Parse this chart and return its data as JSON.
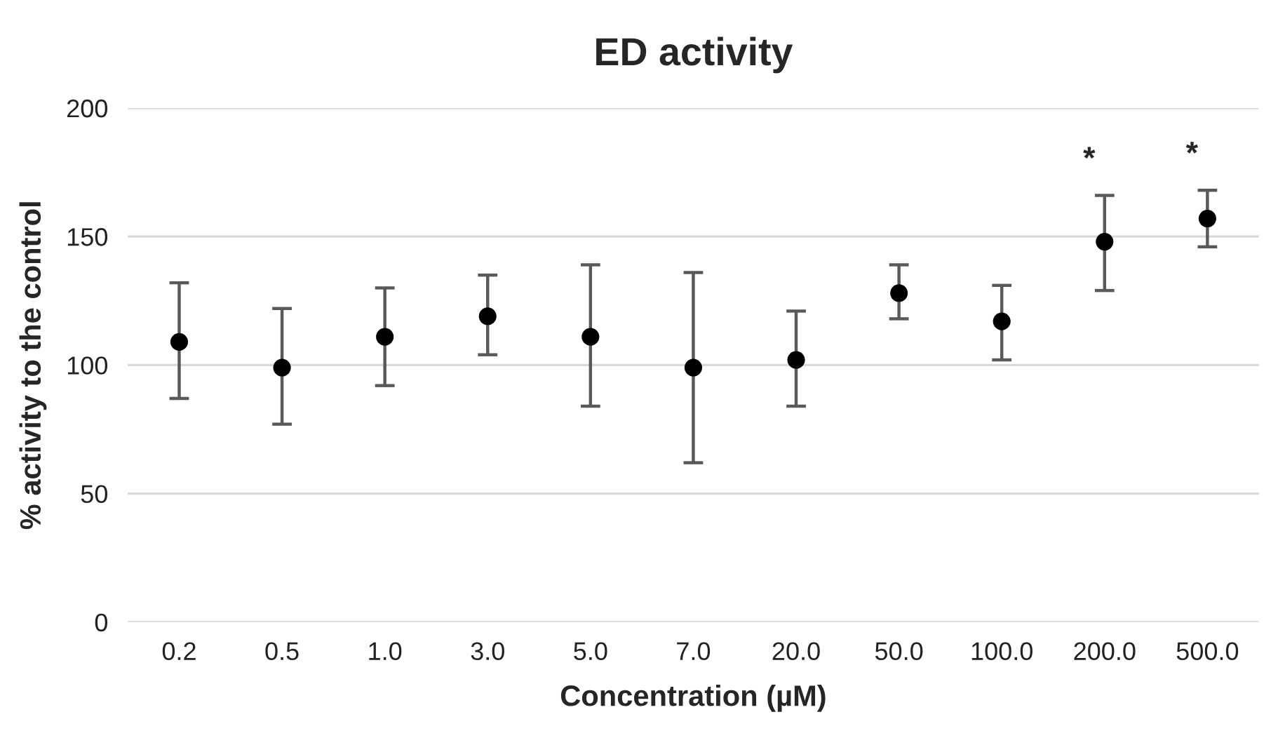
{
  "chart_data": {
    "type": "scatter",
    "title": "ED activity",
    "xlabel": "Concentration (µM)",
    "ylabel": "% activity to the control",
    "categories": [
      "0.2",
      "0.5",
      "1.0",
      "3.0",
      "5.0",
      "7.0",
      "20.0",
      "50.0",
      "100.0",
      "200.0",
      "500.0"
    ],
    "series": [
      {
        "color": "#000000",
        "values": [
          109,
          99,
          111,
          119,
          111,
          99,
          102,
          128,
          117,
          148,
          157
        ],
        "errors": [
          [
            87,
            132
          ],
          [
            77,
            122
          ],
          [
            92,
            130
          ],
          [
            104,
            135
          ],
          [
            84,
            139
          ],
          [
            62,
            136
          ],
          [
            84,
            121
          ],
          [
            118,
            139
          ],
          [
            102,
            131
          ],
          [
            129,
            166
          ],
          [
            146,
            168
          ]
        ]
      }
    ],
    "ylim": [
      0,
      200
    ],
    "yticks": [
      0,
      50,
      100,
      150,
      200
    ],
    "grid": "y",
    "marker": "circle",
    "annotations": [
      {
        "text": "*",
        "x": "200.0",
        "y": 166
      },
      {
        "text": "*",
        "x": "500.0",
        "y": 168
      }
    ]
  }
}
